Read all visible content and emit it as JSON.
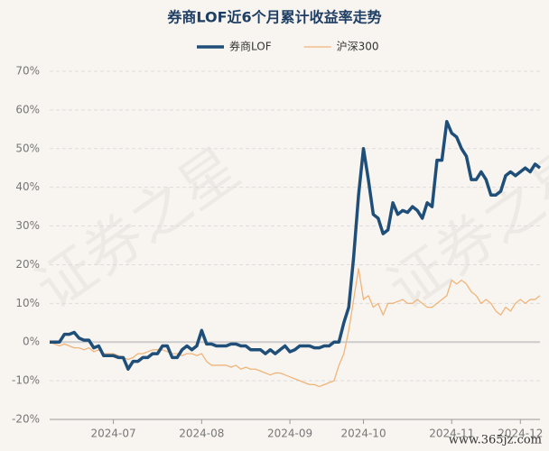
{
  "chart_data": {
    "type": "line",
    "title": "券商LOF近6个月累计收益率走势",
    "watermark": "证券之星",
    "source": "www.365jz.com",
    "categories": [
      null,
      null,
      null,
      null,
      null,
      null,
      null,
      null,
      null,
      null,
      null,
      null,
      null,
      "2024-07",
      null,
      null,
      null,
      null,
      null,
      null,
      null,
      null,
      null,
      null,
      null,
      null,
      null,
      null,
      null,
      null,
      null,
      "2024-08",
      null,
      null,
      null,
      null,
      null,
      null,
      null,
      null,
      null,
      null,
      null,
      null,
      null,
      null,
      null,
      null,
      null,
      "2024-09",
      null,
      null,
      null,
      null,
      null,
      null,
      null,
      null,
      null,
      null,
      null,
      null,
      null,
      null,
      "2024-10",
      null,
      null,
      null,
      null,
      null,
      null,
      null,
      null,
      null,
      null,
      null,
      null,
      null,
      null,
      null,
      null,
      null,
      "2024-11",
      null,
      null,
      null,
      null,
      null,
      null,
      null,
      null,
      null,
      null,
      null,
      null,
      null,
      "2024-12",
      null,
      null,
      null,
      null
    ],
    "series": [
      {
        "name": "券商LOF",
        "color": "#1f4e79",
        "width": 3.5,
        "values": [
          0,
          0,
          0,
          2,
          2,
          2.5,
          1,
          0.5,
          0.5,
          -1.5,
          -1,
          -3.5,
          -3.5,
          -3.5,
          -4,
          -4,
          -7,
          -5,
          -5,
          -4,
          -4,
          -3,
          -3,
          -1,
          -1,
          -4,
          -4,
          -2,
          -1,
          -2,
          -1,
          3,
          -0.5,
          -0.5,
          -1,
          -1,
          -1,
          -0.5,
          -0.5,
          -1,
          -1,
          -2,
          -2,
          -2,
          -3,
          -2,
          -3,
          -2,
          -1,
          -2.5,
          -2,
          -1,
          -1,
          -1,
          -1.5,
          -1.5,
          -1,
          -1,
          0,
          0,
          5,
          9,
          22,
          38,
          50,
          42,
          33,
          32,
          28,
          29,
          36,
          33,
          34,
          33.5,
          35,
          34,
          32,
          36,
          35,
          47,
          47,
          57,
          54,
          53,
          50,
          48,
          42,
          42,
          44,
          42,
          38,
          38,
          39,
          43,
          44,
          43,
          44,
          45,
          44,
          46,
          45
        ]
      },
      {
        "name": "沪深300",
        "color": "#f0b47a",
        "width": 1.3,
        "values": [
          0,
          -0.5,
          -1,
          -0.5,
          -1,
          -1.5,
          -1.5,
          -2,
          -1.5,
          -2.5,
          -2,
          -3,
          -3,
          -3,
          -3.5,
          -4,
          -4.5,
          -4,
          -3,
          -3,
          -2.5,
          -2,
          -2,
          -2,
          -2.5,
          -3,
          -3,
          -3.5,
          -3,
          -3,
          -3.5,
          -3,
          -5,
          -6,
          -6,
          -6,
          -6,
          -6.5,
          -6,
          -7,
          -6.5,
          -7,
          -7,
          -7.5,
          -8,
          -8.5,
          -8,
          -8,
          -8.5,
          -9,
          -9.5,
          -10,
          -10.5,
          -11,
          -11,
          -11.5,
          -11,
          -10.5,
          -10,
          -6,
          -3,
          3,
          11,
          19,
          11,
          12,
          9,
          10,
          7,
          10,
          10,
          10.5,
          11,
          10,
          10,
          11,
          10,
          9,
          9,
          10,
          11,
          12,
          16,
          15,
          16,
          15,
          13,
          12,
          10,
          11,
          10,
          8,
          7,
          9,
          8,
          10,
          11,
          10,
          11,
          11,
          12
        ]
      }
    ],
    "ylim": [
      -20,
      70
    ],
    "yticks": [
      {
        "value": -20,
        "label": "-20%"
      },
      {
        "value": -10,
        "label": "-10%"
      },
      {
        "value": 0,
        "label": "0%"
      },
      {
        "value": 10,
        "label": "10%"
      },
      {
        "value": 20,
        "label": "20%"
      },
      {
        "value": 30,
        "label": "30%"
      },
      {
        "value": 40,
        "label": "40%"
      },
      {
        "value": 50,
        "label": "50%"
      },
      {
        "value": 60,
        "label": "60%"
      },
      {
        "value": 70,
        "label": "70%"
      }
    ],
    "grid": true,
    "legend": "top"
  }
}
